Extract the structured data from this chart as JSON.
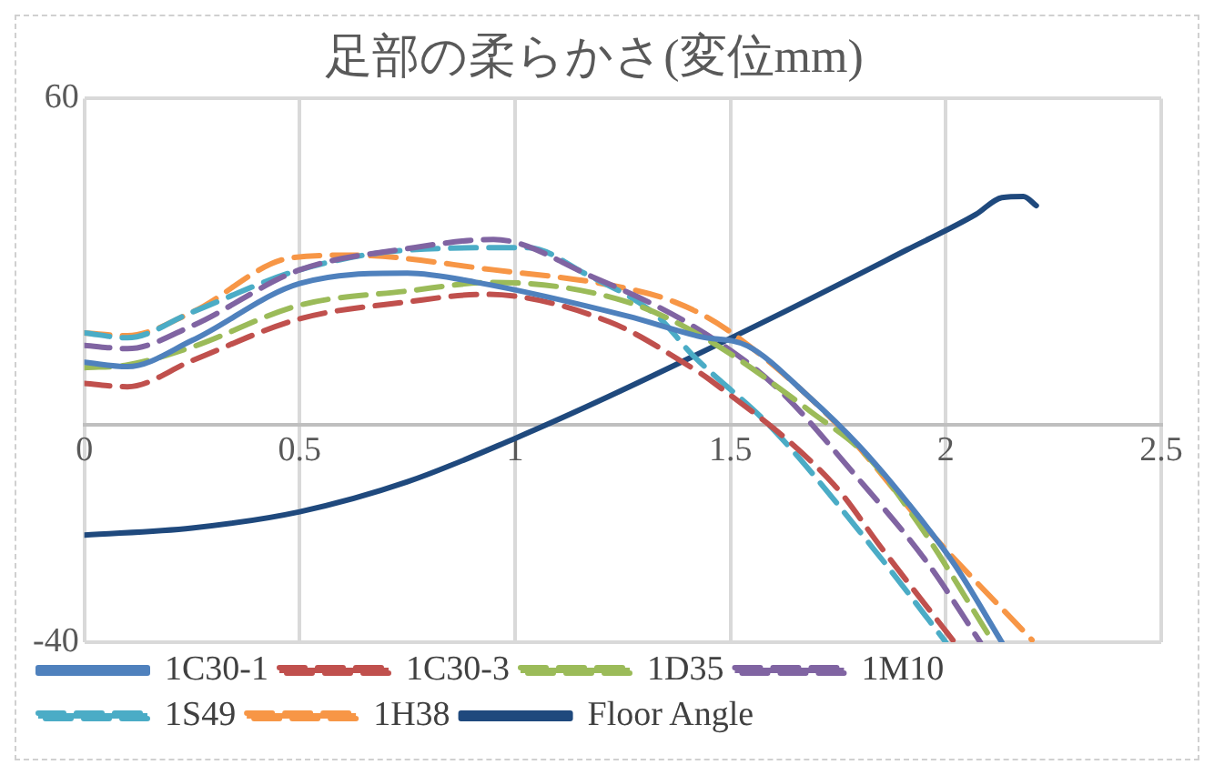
{
  "chart_data": {
    "type": "line",
    "title": "足部の柔らかさ(変位mm)",
    "xlim": [
      0,
      2.5
    ],
    "xticks": [
      0,
      0.5,
      1,
      1.5,
      2,
      2.5
    ],
    "ylim": [
      -40,
      60
    ],
    "yticks": [
      -40,
      60
    ],
    "grid": true,
    "legend": "bottom",
    "series": [
      {
        "name": "1C30-1",
        "color": "#4f81bd",
        "line_style": "solid",
        "x": [
          0,
          0.1,
          0.25,
          0.5,
          0.75,
          0.91,
          1.26,
          1.43,
          1.54,
          1.68,
          1.8,
          1.91,
          2.02,
          2.13
        ],
        "values": [
          11.5,
          10.7,
          15.5,
          26,
          27.9,
          26.2,
          20,
          16.2,
          14.5,
          5.3,
          -4,
          -14.2,
          -25.7,
          -40
        ]
      },
      {
        "name": "1C30-3",
        "color": "#c0504d",
        "line_style": "dashed",
        "x": [
          0,
          0.1,
          0.25,
          0.5,
          0.75,
          0.93,
          1.22,
          1.41,
          1.45,
          1.74,
          1.85,
          2.02
        ],
        "values": [
          7.6,
          7,
          11.8,
          19.5,
          22.6,
          24,
          18.9,
          10.5,
          8.4,
          -11,
          -22.6,
          -40
        ]
      },
      {
        "name": "1D35",
        "color": "#9bbb59",
        "line_style": "dashed",
        "x": [
          0,
          0.1,
          0.25,
          0.5,
          0.75,
          0.95,
          1.26,
          1.45,
          1.69,
          1.82,
          1.94,
          2.11
        ],
        "values": [
          10.5,
          11,
          14.3,
          22,
          24.6,
          26.2,
          22.6,
          15.5,
          2.2,
          -6,
          -18.6,
          -40
        ]
      },
      {
        "name": "1M10",
        "color": "#8064a2",
        "line_style": "dashed",
        "x": [
          0,
          0.1,
          0.25,
          0.5,
          0.75,
          0.95,
          1.18,
          1.41,
          1.6,
          1.79,
          1.96,
          2.08
        ],
        "values": [
          14.6,
          14,
          18.2,
          28.5,
          32.4,
          34.1,
          27.2,
          18.3,
          7.4,
          -9.3,
          -25.7,
          -40
        ]
      },
      {
        "name": "1S49",
        "color": "#4bacc6",
        "line_style": "dashed",
        "x": [
          0,
          0.1,
          0.25,
          0.5,
          0.76,
          1.03,
          1.16,
          1.33,
          1.41,
          1.6,
          1.83,
          2.0
        ],
        "values": [
          16.9,
          16,
          20.7,
          28.5,
          32.2,
          32.6,
          27.9,
          20,
          13,
          -0.9,
          -22.6,
          -40
        ]
      },
      {
        "name": "1H38",
        "color": "#f79646",
        "line_style": "dashed",
        "x": [
          0,
          0.1,
          0.25,
          0.48,
          0.62,
          0.95,
          1.22,
          1.37,
          1.49,
          1.76,
          1.96,
          2.2
        ],
        "values": [
          16.9,
          16.4,
          20.7,
          30.7,
          31.2,
          28.5,
          25.7,
          22.6,
          17.6,
          -0.9,
          -19.5,
          -39.6
        ]
      },
      {
        "name": "Floor Angle",
        "color": "#1f497d",
        "line_style": "solid",
        "x": [
          0,
          0.25,
          0.5,
          0.75,
          1.0,
          1.22,
          1.6,
          1.91,
          2.07,
          2.13,
          2.18,
          2.21
        ],
        "values": [
          -20.3,
          -19,
          -16,
          -10.5,
          -2.5,
          5.3,
          19.8,
          32.2,
          38.7,
          41.8,
          42,
          40.3
        ]
      }
    ]
  }
}
